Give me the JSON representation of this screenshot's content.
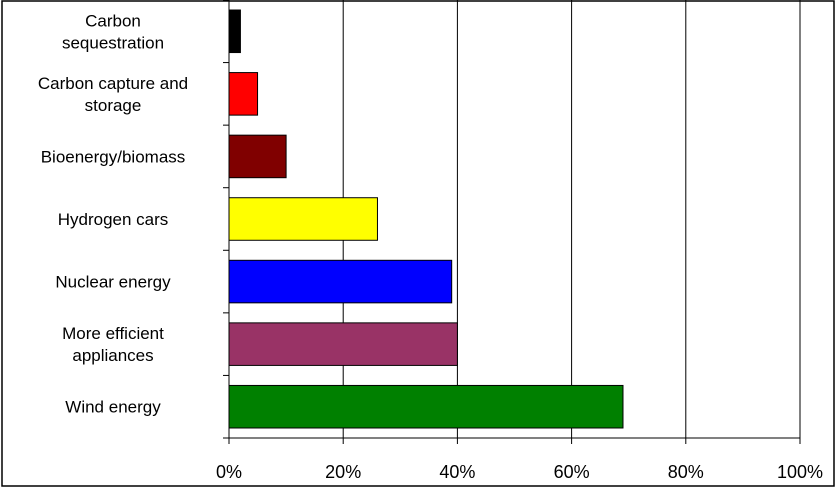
{
  "chart_data": {
    "type": "bar",
    "orientation": "horizontal",
    "title": "",
    "xlabel": "",
    "ylabel": "",
    "categories": [
      "Carbon sequestration",
      "Carbon capture and storage",
      "Bioenergy/biomass",
      "Hydrogen cars",
      "Nuclear energy",
      "More efficient appliances",
      "Wind energy"
    ],
    "category_lines": [
      [
        "Carbon",
        "sequestration"
      ],
      [
        "Carbon capture and",
        "storage"
      ],
      [
        "Bioenergy/biomass"
      ],
      [
        "Hydrogen cars"
      ],
      [
        "Nuclear energy"
      ],
      [
        "More efficient",
        "appliances"
      ],
      [
        "Wind energy"
      ]
    ],
    "values": [
      2,
      5,
      10,
      26,
      39,
      40,
      69
    ],
    "colors": [
      "#000000",
      "#ff0000",
      "#800000",
      "#ffff00",
      "#0000ff",
      "#993366",
      "#008000"
    ],
    "xlim": [
      0,
      100
    ],
    "xticks": [
      0,
      20,
      40,
      60,
      80,
      100
    ],
    "tick_labels": [
      "0%",
      "20%",
      "40%",
      "60%",
      "80%",
      "100%"
    ],
    "grid": true,
    "legend": "none"
  }
}
